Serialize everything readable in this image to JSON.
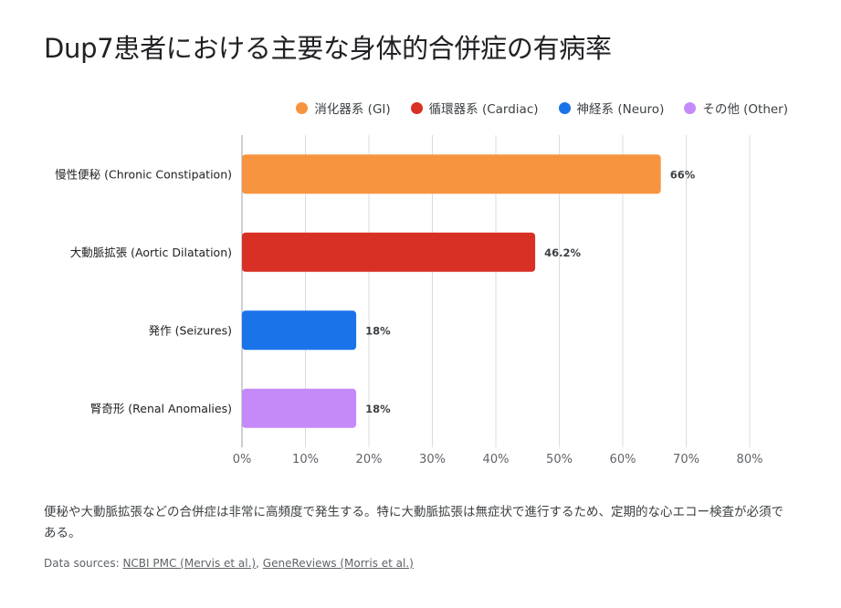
{
  "title": "Dup7患者における主要な身体的合併症の有病率",
  "colors": {
    "gi": "#f79440",
    "cardiac": "#d93025",
    "neuro": "#1a73e8",
    "other": "#c58af9",
    "grid": "#dadce0",
    "axis_text": "#5f6368",
    "label_text": "#202124"
  },
  "legend": [
    {
      "label": "消化器系 (GI)",
      "color": "#f79440"
    },
    {
      "label": "循環器系 (Cardiac)",
      "color": "#d93025"
    },
    {
      "label": "神経系 (Neuro)",
      "color": "#1a73e8"
    },
    {
      "label": "その他 (Other)",
      "color": "#c58af9"
    }
  ],
  "chart_data": {
    "type": "bar",
    "orientation": "horizontal",
    "title": "Dup7患者における主要な身体的合併症の有病率",
    "categories": [
      "慢性便秘 (Chronic Constipation)",
      "大動脈拡張 (Aortic Dilatation)",
      "発作 (Seizures)",
      "腎奇形 (Renal Anomalies)"
    ],
    "values": [
      66,
      46.2,
      18,
      18
    ],
    "data_labels": [
      "66%",
      "46.2%",
      "18%",
      "18%"
    ],
    "bar_groups": [
      "消化器系 (GI)",
      "循環器系 (Cardiac)",
      "神経系 (Neuro)",
      "その他 (Other)"
    ],
    "bar_colors": [
      "#f79440",
      "#d93025",
      "#1a73e8",
      "#c58af9"
    ],
    "xlim": [
      0,
      80
    ],
    "xticks": [
      "0%",
      "10%",
      "20%",
      "30%",
      "40%",
      "50%",
      "60%",
      "70%",
      "80%"
    ],
    "grid": true,
    "legend_position": "top-right"
  },
  "note": "便秘や大動脈拡張などの合併症は非常に高頻度で発生する。特に大動脈拡張は無症状で進行するため、定期的な心エコー検査が必須である。",
  "sources": {
    "prefix": "Data sources:",
    "links": [
      {
        "label": "NCBI PMC (Mervis et al.)"
      },
      {
        "label": "GeneReviews (Morris et al.)"
      }
    ],
    "separator": ","
  }
}
